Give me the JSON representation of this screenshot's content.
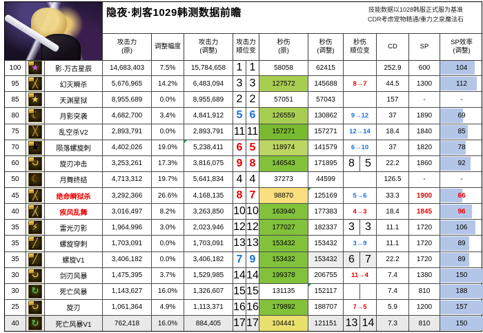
{
  "title": "隐夜·刺客1029韩测数据前瞻",
  "notes": [
    "技能数据以1028韩服正式服为基准",
    "CDR考虑宠物精通/重力之泉魔法石"
  ],
  "headers": {
    "atk_orig": [
      "攻击力",
      "(原)"
    ],
    "adjust": [
      "调整幅度"
    ],
    "atk_new": [
      "攻击力",
      "(调整)"
    ],
    "atk_rank": [
      "攻击力",
      "顺位变"
    ],
    "dps_orig": [
      "秒伤",
      "(原)"
    ],
    "dps_new": [
      "秒伤",
      "(调整)"
    ],
    "dps_rank": [
      "秒伤",
      "顺位变"
    ],
    "cd": [
      "CD"
    ],
    "sp": [
      "SP"
    ],
    "sp_eff": [
      "SP效率",
      "(调整)"
    ]
  },
  "colors": {
    "red": "#e80000",
    "blue": "#1a6fd6",
    "black": "#000000",
    "bar_fill": "#b4c6e7",
    "green_strong": "#82c13a",
    "green_mid": "#a8ce51",
    "green_dark": "#79ba31",
    "green_yellow": "#bcd563",
    "yellow": "#fbdf7e",
    "yellow_muted": "#eae06d",
    "row_highlight": "#e9e9e9"
  },
  "chart_note": "sp_eff bar width drawn as min(100, value/1.3) percent",
  "rows": [
    {
      "level": "100",
      "name": "影·万古星辰",
      "name_color": "#000000",
      "icon": {
        "glyph": "★",
        "color": "#c95bd6",
        "badge": true,
        "name": "skill-icon-star"
      },
      "atk_orig": "14,683,403",
      "adjust": "7.5%",
      "atk_new": "15,784,658",
      "atk_rank": [
        "1",
        "1"
      ],
      "atk_rank_color": "#000000",
      "dps_orig": "58058",
      "dps_orig_bg": null,
      "dps_new": "62415",
      "dps_rank": {
        "type": "none"
      },
      "cd": "252.9",
      "sp": "600",
      "sp_color": "#000000",
      "sp_eff": "104",
      "sp_eff_color": "#000000",
      "sp_eff_bar": true
    },
    {
      "level": "95",
      "name": "幻灭瞬杀",
      "name_color": "#000000",
      "icon": {
        "glyph": "╳",
        "color": "#e3b23c",
        "badge": true,
        "name": "skill-icon-cross-slash"
      },
      "atk_orig": "5,676,965",
      "adjust": "14.2%",
      "atk_new": "6,483,094",
      "atk_rank": [
        "3",
        "3"
      ],
      "atk_rank_color": "#000000",
      "dps_orig": "127572",
      "dps_orig_bg": "#a8ce51",
      "dps_new": "145688",
      "dps_rank": {
        "type": "arrow",
        "from": "8",
        "to": "7",
        "color": "#e80000"
      },
      "cd": "44.5",
      "sp": "1300",
      "sp_color": "#000000",
      "sp_eff": "112",
      "sp_eff_color": "#000000",
      "sp_eff_bar": true
    },
    {
      "level": "85",
      "name": "天渊星狱",
      "name_color": "#000000",
      "icon": {
        "glyph": "★",
        "color": "#f0cf5a",
        "badge": true,
        "name": "skill-icon-star"
      },
      "atk_orig": "8,955,689",
      "adjust": "0.0%",
      "atk_new": "8,955,689",
      "atk_rank": [
        "2",
        "2"
      ],
      "atk_rank_color": "#000000",
      "dps_orig": "57051",
      "dps_orig_bg": null,
      "dps_new": "57043",
      "dps_rank": {
        "type": "none"
      },
      "cd": "157",
      "sp": "-",
      "sp_color": "#000000",
      "sp_eff": "-",
      "sp_eff_color": "#000000",
      "sp_eff_bar": false
    },
    {
      "level": "80",
      "name": "月影突袭",
      "name_color": "#000000",
      "icon": {
        "glyph": "☾",
        "color": "#e8c04e",
        "badge": true,
        "name": "skill-icon-crescent"
      },
      "atk_orig": "4,682,700",
      "adjust": "3.4%",
      "atk_new": "4,841,912",
      "atk_rank": [
        "5",
        "6"
      ],
      "atk_rank_color": "#1a6fd6",
      "dps_orig": "126559",
      "dps_orig_bg": "#a8ce51",
      "dps_new": "130862",
      "dps_rank": {
        "type": "arrow",
        "from": "9",
        "to": "12",
        "color": "#1a6fd6"
      },
      "cd": "37",
      "sp": "1890",
      "sp_color": "#000000",
      "sp_eff": "69",
      "sp_eff_color": "#000000",
      "sp_eff_bar": true
    },
    {
      "level": "75",
      "name": "乱空杀V2",
      "name_color": "#000000",
      "icon": {
        "glyph": "╳",
        "color": "#dca63a",
        "badge": false,
        "name": "skill-icon-cross-slash"
      },
      "atk_orig": "2,893,791",
      "adjust": "0.0%",
      "atk_new": "2,893,791",
      "atk_rank": [
        "11",
        "11"
      ],
      "atk_rank_color": "#000000",
      "dps_orig": "157271",
      "dps_orig_bg": "#79ba31",
      "dps_new": "157271",
      "dps_rank": {
        "type": "arrow",
        "from": "12",
        "to": "14",
        "color": "#1a6fd6"
      },
      "cd": "18.4",
      "sp": "1840",
      "sp_color": "#000000",
      "sp_eff": "85",
      "sp_eff_color": "#000000",
      "sp_eff_bar": true
    },
    {
      "level": "70",
      "name": "陨落螺旋刺",
      "name_color": "#000000",
      "icon": {
        "glyph": "★",
        "color": "#d8a capital",
        "badge": true,
        "name": "skill-icon-crown"
      },
      "atk_orig": "4,402,026",
      "adjust": "19.0%",
      "atk_new": "5,238,411",
      "atk_rank": [
        "6",
        "5"
      ],
      "atk_rank_color": "#e80000",
      "dps_orig": "118974",
      "dps_orig_bg": "#bcd563",
      "dps_new": "141579",
      "dps_rank": {
        "type": "arrow",
        "from": "6",
        "to": "10",
        "color": "#1a6fd6"
      },
      "cd": "37",
      "sp": "1820",
      "sp_color": "#000000",
      "sp_eff": "78",
      "sp_eff_color": "#000000",
      "sp_eff_bar": true,
      "notes": [
        "atk_new"
      ]
    },
    {
      "level": "60",
      "name": "旋刃冲击",
      "name_color": "#000000",
      "icon": {
        "glyph": "↻",
        "color": "#e0b544",
        "badge": true,
        "name": "skill-icon-spin"
      },
      "atk_orig": "3,253,261",
      "adjust": "17.3%",
      "atk_new": "3,816,075",
      "atk_rank": [
        "9",
        "8"
      ],
      "atk_rank_color": "#e80000",
      "dps_orig": "146543",
      "dps_orig_bg": "#82c13a",
      "dps_new": "171895",
      "dps_rank": {
        "type": "pair",
        "values": [
          "8",
          "5"
        ]
      },
      "cd": "22.2",
      "sp": "1860",
      "sp_color": "#000000",
      "sp_eff": "92",
      "sp_eff_color": "#000000",
      "sp_eff_bar": true
    },
    {
      "level": "50",
      "name": "月舞终结",
      "name_color": "#000000",
      "icon": {
        "glyph": "☾",
        "color": "#e8832c",
        "badge": false,
        "name": "skill-icon-crescent"
      },
      "atk_orig": "4,713,312",
      "adjust": "19.7%",
      "atk_new": "5,641,834",
      "atk_rank": [
        "4",
        "4"
      ],
      "atk_rank_color": "#000000",
      "dps_orig": "37273",
      "dps_orig_bg": null,
      "dps_new": "44599",
      "dps_rank": {
        "type": "none"
      },
      "cd": "126.5",
      "sp": "-",
      "sp_color": "#000000",
      "sp_eff": "-",
      "sp_eff_color": "#000000",
      "sp_eff_bar": false
    },
    {
      "level": "45",
      "name": "绝命瞬狱杀",
      "name_color": "#e80000",
      "icon": {
        "glyph": "╳",
        "color": "#e3b23c",
        "badge": true,
        "name": "skill-icon-cross-slash"
      },
      "atk_orig": "3,292,366",
      "adjust": "26.6%",
      "atk_new": "4,168,135",
      "atk_rank": [
        "8",
        "7"
      ],
      "atk_rank_color": "#e80000",
      "dps_orig": "98870",
      "dps_orig_bg": "#fbdf7e",
      "dps_new": "125169",
      "dps_rank": {
        "type": "arrow",
        "from": "5",
        "to": "6",
        "color": "#1a6fd6"
      },
      "cd": "33.3",
      "sp": "1900",
      "sp_color": "#e80000",
      "sp_eff": "66",
      "sp_eff_color": "#e80000",
      "sp_eff_bar": true,
      "notes": [
        "dps_new"
      ]
    },
    {
      "level": "40",
      "name": "疾风乱舞",
      "name_color": "#e80000",
      "icon": {
        "glyph": "╳",
        "color": "#e6c860",
        "badge": true,
        "name": "skill-icon-cross-slash"
      },
      "atk_orig": "3,016,497",
      "adjust": "8.2%",
      "atk_new": "3,263,850",
      "atk_rank": [
        "10",
        "10"
      ],
      "atk_rank_color": "#000000",
      "dps_orig": "163940",
      "dps_orig_bg": "#82c13a",
      "dps_new": "177383",
      "dps_rank": {
        "type": "arrow",
        "from": "4",
        "to": "3",
        "color": "#e80000"
      },
      "cd": "18.4",
      "sp": "1845",
      "sp_color": "#e80000",
      "sp_eff": "96",
      "sp_eff_color": "#e80000",
      "sp_eff_bar": true
    },
    {
      "level": "35",
      "name": "雷光刃影",
      "name_color": "#000000",
      "icon": {
        "glyph": "⚡",
        "color": "#ffe84a",
        "badge": true,
        "name": "skill-icon-lightning"
      },
      "atk_orig": "1,964,996",
      "adjust": "3.0%",
      "atk_new": "2,023,946",
      "atk_rank": [
        "12",
        "12"
      ],
      "atk_rank_color": "#000000",
      "dps_orig": "177027",
      "dps_orig_bg": "#82c13a",
      "dps_new": "182337",
      "dps_rank": {
        "type": "pair",
        "values": [
          "3",
          "3"
        ]
      },
      "cd": "11.1",
      "sp": "1720",
      "sp_color": "#000000",
      "sp_eff": "106",
      "sp_eff_color": "#000000",
      "sp_eff_bar": true
    },
    {
      "level": "35",
      "name": "螺旋穿刺",
      "name_color": "#000000",
      "icon": {
        "glyph": "╱",
        "color": "#e0b544",
        "badge": true,
        "name": "skill-icon-pierce"
      },
      "atk_orig": "1,703,091",
      "adjust": "0.0%",
      "atk_new": "1,703,091",
      "atk_rank": [
        "13",
        "13"
      ],
      "atk_rank_color": "#000000",
      "dps_orig": "153432",
      "dps_orig_bg": "#82c13a",
      "dps_new": "153432",
      "dps_rank": {
        "type": "arrow",
        "from": "3",
        "to": "9",
        "color": "#1a6fd6"
      },
      "cd": "11.1",
      "sp": "1720",
      "sp_color": "#000000",
      "sp_eff": "89",
      "sp_eff_color": "#000000",
      "sp_eff_bar": true
    },
    {
      "level": "35",
      "name": "螺旋V1",
      "name_color": "#000000",
      "icon": {
        "glyph": "╱",
        "color": "#e0b544",
        "badge": true,
        "name": "skill-icon-pierce"
      },
      "atk_orig": "3,406,182",
      "adjust": "0.0%",
      "atk_new": "3,406,182",
      "atk_rank": [
        "7",
        "9"
      ],
      "atk_rank_color": "#1a6fd6",
      "dps_orig": "153432",
      "dps_orig_bg": "#82c13a",
      "dps_new": "153432",
      "dps_new_bg": "#ededed",
      "dps_rank": {
        "type": "pair",
        "values": [
          "6",
          "7"
        ],
        "bg": "#ededed"
      },
      "cd": "22.2",
      "sp": "1720",
      "sp_color": "#000000",
      "sp_eff": "89",
      "sp_eff_color": "#000000",
      "sp_eff_bar": true
    },
    {
      "level": "30",
      "name": "剑刃风暴",
      "name_color": "#000000",
      "icon": {
        "glyph": "↻",
        "color": "#e8c04e",
        "badge": true,
        "name": "skill-icon-spin"
      },
      "atk_orig": "1,475,395",
      "adjust": "3.7%",
      "atk_new": "1,529,985",
      "atk_rank": [
        "14",
        "14"
      ],
      "atk_rank_color": "#000000",
      "dps_orig": "199378",
      "dps_orig_bg": "#82c13a",
      "dps_new": "206755",
      "dps_rank": {
        "type": "arrow",
        "from": "11",
        "to": "4",
        "color": "#e80000"
      },
      "cd": "7.4",
      "sp": "1380",
      "sp_color": "#000000",
      "sp_eff": "150",
      "sp_eff_color": "#000000",
      "sp_eff_bar": true
    },
    {
      "level": "30",
      "name": "死亡风暴",
      "name_color": "#000000",
      "icon": {
        "glyph": "↻",
        "color": "#49c24e",
        "badge": false,
        "name": "skill-icon-spin-green"
      },
      "atk_orig": "1,143,627",
      "adjust": "16.0%",
      "atk_new": "1,326,607",
      "atk_rank": [
        "15",
        "15"
      ],
      "atk_rank_color": "#000000",
      "dps_orig": "131135",
      "dps_orig_bg": null,
      "dps_new": "152117",
      "dps_rank": {
        "type": "pair",
        "values": [
          "",
          ""
        ]
      },
      "cd": "7.4",
      "sp": "810",
      "sp_color": "#000000",
      "sp_eff": "188",
      "sp_eff_color": "#000000",
      "sp_eff_bar": true,
      "notes": [
        "dps_new"
      ]
    },
    {
      "level": "25",
      "name": "旋刃",
      "name_color": "#000000",
      "icon": {
        "glyph": "↻",
        "color": "#e0b544",
        "badge": true,
        "name": "skill-icon-spin"
      },
      "atk_orig": "1,061,364",
      "adjust": "4.9%",
      "atk_new": "1,113,371",
      "atk_rank": [
        "16",
        "16"
      ],
      "atk_rank_color": "#000000",
      "dps_orig": "179892",
      "dps_orig_bg": "#82c13a",
      "dps_new": "188707",
      "dps_rank": {
        "type": "arrow",
        "from": "7",
        "to": "5",
        "color": "#e80000"
      },
      "cd": "5.9",
      "sp": "1200",
      "sp_color": "#000000",
      "sp_eff": "157",
      "sp_eff_color": "#000000",
      "sp_eff_bar": true
    },
    {
      "level": "40",
      "name": "死亡风暴V1",
      "name_color": "#000000",
      "icon": {
        "glyph": "↻",
        "color": "#49c24e",
        "badge": false,
        "name": "skill-icon-spin-green"
      },
      "atk_orig": "762,418",
      "adjust": "16.0%",
      "atk_new": "884,405",
      "atk_rank": [
        "17",
        "17"
      ],
      "atk_rank_color": "#000000",
      "dps_orig": "104441",
      "dps_orig_bg": "#eae06d",
      "dps_new": "121151",
      "dps_rank": {
        "type": "pair",
        "values": [
          "13",
          "14"
        ]
      },
      "cd": "7.3",
      "sp": "810",
      "sp_color": "#000000",
      "sp_eff": "150",
      "sp_eff_color": "#000000",
      "sp_eff_bar": true,
      "row_bg": "#e9e9e9"
    }
  ]
}
